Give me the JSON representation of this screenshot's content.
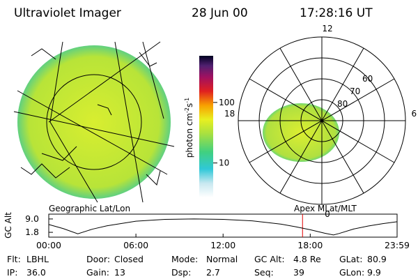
{
  "header": {
    "title": "Ultraviolet Imager",
    "date": "28 Jun 00",
    "time": "17:28:16 UT"
  },
  "colorbar": {
    "label_parts": [
      "photon cm",
      "-2",
      "s",
      "-1"
    ],
    "scale": "log",
    "clim": [
      2.7,
      590
    ],
    "ticks": [
      10,
      100
    ]
  },
  "polar": {
    "mlat_lim": [
      90,
      50
    ],
    "rings": [
      80,
      70,
      60
    ],
    "mlt_labels": [
      12,
      6,
      0,
      18
    ]
  },
  "subtitles": {
    "left": "Geographic Lat/Lon",
    "right": "Apex  MLat/MLT"
  },
  "altitude_plot": {
    "ylabel": "GC Alt",
    "xlim": [
      0,
      23.98
    ],
    "ylim": [
      -0.8,
      11.6
    ],
    "yticks": [
      {
        "value": 9,
        "label": "9.0"
      },
      1.8
    ],
    "xticks": [
      {
        "value": 0,
        "label": "00:00"
      },
      {
        "value": 6,
        "label": "06:00"
      },
      {
        "value": 12,
        "label": "12:00"
      },
      {
        "value": 18,
        "label": "18:00"
      },
      {
        "value": 23.98,
        "label": "23:59"
      }
    ],
    "x": [
      0,
      1,
      2,
      3,
      4,
      6,
      8,
      10,
      12,
      14,
      16,
      17,
      18,
      19,
      19.6,
      20,
      21,
      22,
      23,
      23.98
    ],
    "values": [
      6.0,
      3.8,
      1.0,
      3.5,
      5.3,
      7.8,
      8.8,
      9.0,
      8.8,
      8.0,
      6.2,
      4.8,
      3.2,
      1.3,
      0.4,
      1.2,
      3.6,
      5.2,
      6.5,
      7.5
    ],
    "marker_x": 17.47,
    "marker_color": "#e00000"
  },
  "info": {
    "rows": [
      [
        [
          "Flt:",
          "LBHL"
        ],
        [
          "Door:",
          "Closed"
        ],
        [
          "Mode:",
          "Normal"
        ],
        [
          "GC Alt:",
          "4.8 Re"
        ],
        [
          "GLat:",
          "80.9"
        ]
      ],
      [
        [
          "IP:",
          "36.0"
        ],
        [
          "Gain:",
          "13"
        ],
        [
          "Dsp:",
          "2.7"
        ],
        [
          "Seq:",
          "39"
        ],
        [
          "GLon:",
          "9.9"
        ]
      ]
    ]
  }
}
